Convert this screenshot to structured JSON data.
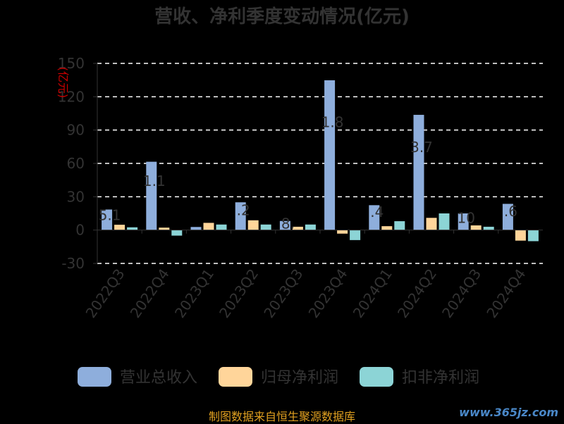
{
  "title": "营收、净利季度变动情况(亿元)",
  "source": "制图数据来自恒生聚源数据库",
  "watermark": "www.365jz.com",
  "chart_data": {
    "type": "bar",
    "ylabel": "(亿元)",
    "ylim": [
      -30,
      150
    ],
    "yticks": [
      -30,
      0,
      30,
      60,
      90,
      120,
      150
    ],
    "grid": true,
    "legend_position": "bottom",
    "categories": [
      "2022Q3",
      "2022Q4",
      "2023Q1",
      "2023Q2",
      "2023Q3",
      "2023Q4",
      "2024Q1",
      "2024Q2",
      "2024Q3",
      "2024Q4"
    ],
    "series": [
      {
        "name": "营业总收入",
        "color": "#8eaedc",
        "values": [
          18.5,
          61.5,
          2.8,
          25.0,
          8.2,
          134.8,
          22.4,
          103.7,
          15.0,
          23.6
        ]
      },
      {
        "name": "归母净利润",
        "color": "#ffd59a",
        "values": [
          4.8,
          2.2,
          6.5,
          8.8,
          3.0,
          -3.2,
          3.5,
          11.0,
          4.2,
          -9.5
        ]
      },
      {
        "name": "扣非净利润",
        "color": "#8cd4d6",
        "values": [
          2.5,
          -5.0,
          5.0,
          5.0,
          5.0,
          -9.0,
          8.0,
          15.0,
          3.0,
          -10.0
        ]
      }
    ],
    "data_labels": [
      "5.1",
      "1.1",
      "",
      ".2",
      "8.",
      "1.8",
      ".4",
      "3.7",
      "10",
      ".6"
    ]
  }
}
